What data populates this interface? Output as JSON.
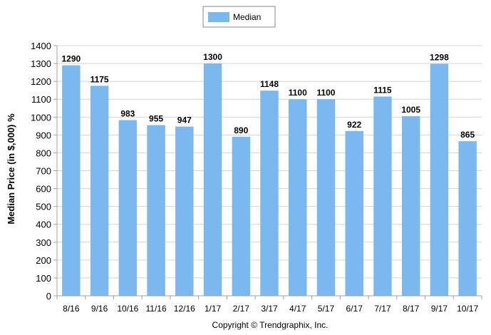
{
  "chart_data": {
    "type": "bar",
    "categories": [
      "8/16",
      "9/16",
      "10/16",
      "11/16",
      "12/16",
      "1/17",
      "2/17",
      "3/17",
      "4/17",
      "5/17",
      "6/17",
      "7/17",
      "8/17",
      "9/17",
      "10/17"
    ],
    "series": [
      {
        "name": "Median",
        "values": [
          1290,
          1175,
          983,
          955,
          947,
          1300,
          890,
          1148,
          1100,
          1100,
          922,
          1115,
          1005,
          1298,
          865
        ],
        "color": "#7ab8ef"
      }
    ],
    "ylabel": "Median Price (in $,000) %",
    "ylim": [
      0,
      1400
    ],
    "yticks": [
      0,
      100,
      200,
      300,
      400,
      500,
      600,
      700,
      800,
      900,
      1000,
      1100,
      1200,
      1300,
      1400
    ],
    "grid": true,
    "legend_position": "top-center",
    "copyright": "Copyright © Trendgraphix, Inc."
  },
  "colors": {
    "bar": "#7ab8ef",
    "grid": "#d3d3d3",
    "axis": "#a0a0a0",
    "text": "#000000"
  }
}
